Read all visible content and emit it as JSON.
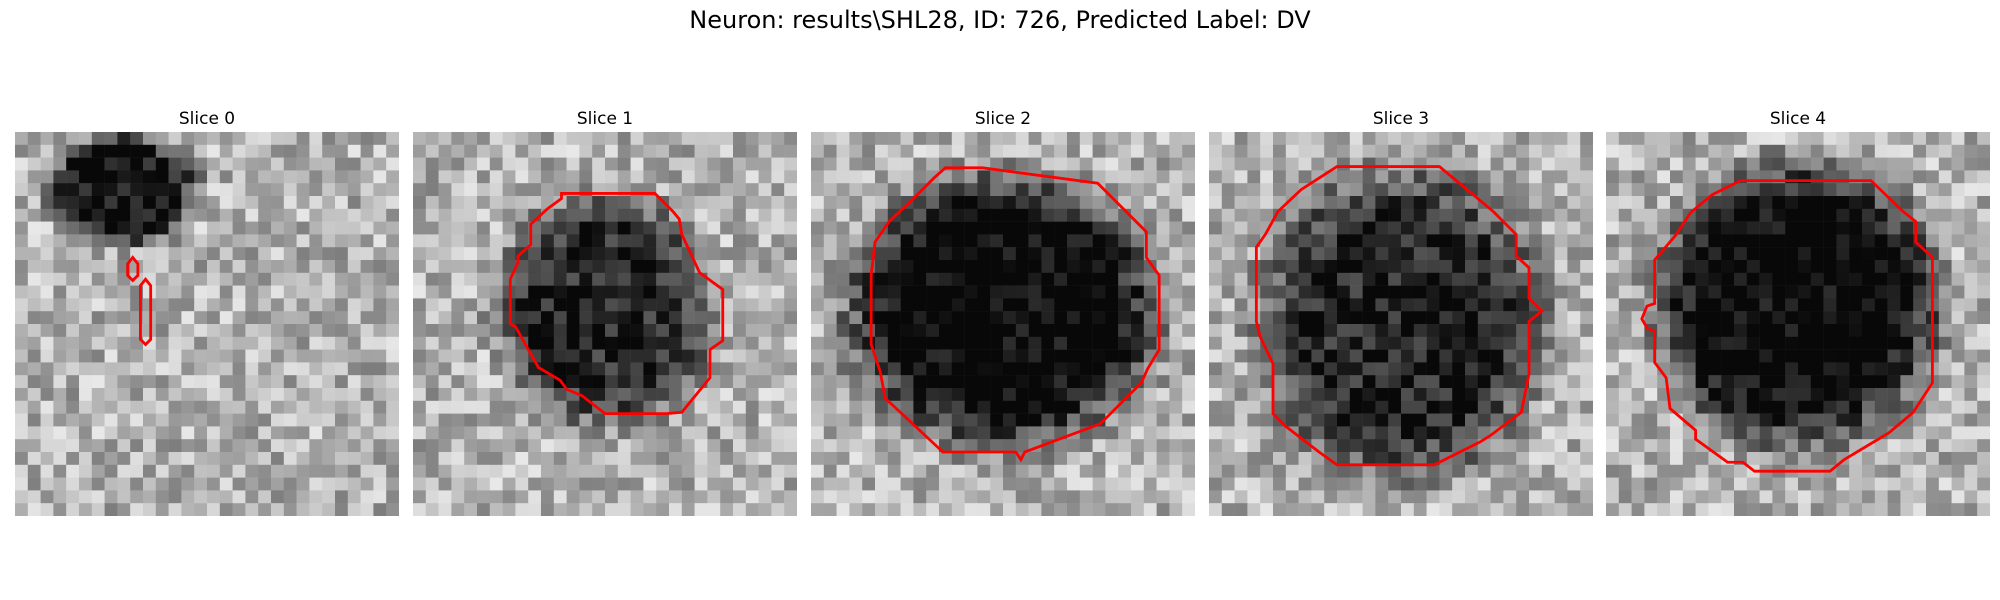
{
  "figure": {
    "title": "Neuron: results\\SHL28, ID: 726, Predicted Label: DV"
  },
  "panels": [
    {
      "title": "Slice 0",
      "image": "grayscale-patch-slice-0",
      "overlay": "red-roi-contour"
    },
    {
      "title": "Slice 1",
      "image": "grayscale-patch-slice-1",
      "overlay": "red-roi-contour"
    },
    {
      "title": "Slice 2",
      "image": "grayscale-patch-slice-2",
      "overlay": "red-roi-contour"
    },
    {
      "title": "Slice 3",
      "image": "grayscale-patch-slice-3",
      "overlay": "red-roi-contour"
    },
    {
      "title": "Slice 4",
      "image": "grayscale-patch-slice-4",
      "overlay": "red-roi-contour"
    }
  ],
  "colors": {
    "contour": "#ff0000",
    "background": "#ffffff"
  }
}
